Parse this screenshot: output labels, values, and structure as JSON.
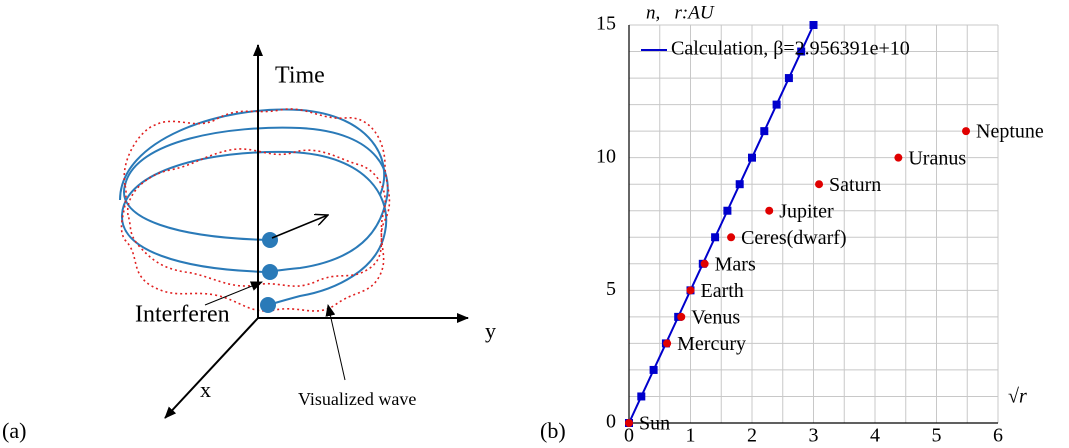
{
  "panel_labels": [
    "(a)",
    "(b)"
  ],
  "diagram": {
    "time_label": "Time",
    "y_label": "y",
    "x_label": "x",
    "interference_label": "Interferen",
    "wave_label": "Visualized wave"
  },
  "chart_data": {
    "type": "scatter",
    "y_label": "n,   r:AU",
    "x_label": "√r",
    "xlim": [
      0,
      6
    ],
    "xticks": [
      0,
      1,
      2,
      3,
      4,
      5,
      6
    ],
    "ylim": [
      0,
      15
    ],
    "yticks": [
      0,
      5,
      10,
      15
    ],
    "xgrid": [
      0.5,
      1,
      1.5,
      2,
      2.5,
      3,
      3.5,
      4,
      4.5,
      5,
      5.5,
      6
    ],
    "ygrid": [
      1,
      2,
      3,
      4,
      5,
      6,
      7,
      8,
      9,
      10,
      11,
      12,
      13,
      14,
      15
    ],
    "legend": "top-left",
    "series": [
      {
        "name": "Calculation, β=2.956391e+10",
        "type": "line",
        "color": "#0000cc",
        "x": [
          0,
          0.2,
          0.4,
          0.6,
          0.8,
          1.0,
          1.2,
          1.4,
          1.6,
          1.8,
          2.0,
          2.2,
          2.4,
          2.6,
          2.8,
          3.0
        ],
        "values": [
          0,
          1,
          2,
          3,
          4,
          5,
          6,
          7,
          8,
          9,
          10,
          11,
          12,
          13,
          14,
          15
        ]
      },
      {
        "type": "scatter",
        "color": "#e00000",
        "x": [
          0,
          0.62,
          0.85,
          1.0,
          1.23,
          1.66,
          2.28,
          3.09,
          4.38,
          5.48
        ],
        "values": [
          0,
          3,
          4,
          5,
          6,
          7,
          8,
          9,
          10,
          11
        ],
        "labels": [
          "Sun",
          "Mercury",
          "Venus",
          "Earth",
          "Mars",
          "Ceres(dwarf)",
          "Jupiter",
          "Saturn",
          "Uranus",
          "Neptune"
        ]
      }
    ]
  }
}
